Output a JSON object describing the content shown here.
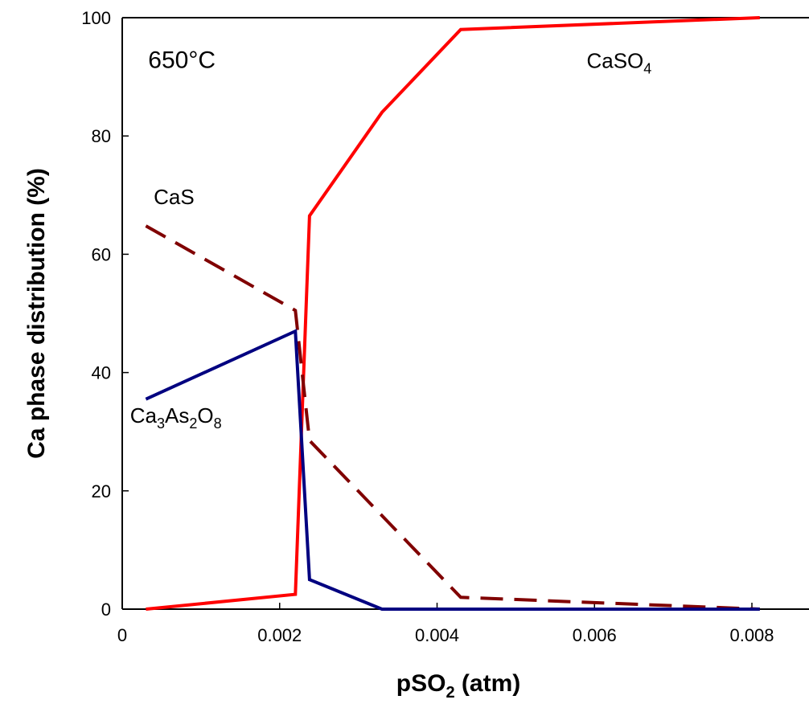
{
  "chart_data": {
    "type": "line",
    "title": "",
    "xlabel": {
      "main": "pSO",
      "sub": "2",
      "unit": " (atm)"
    },
    "ylabel": "Ca phase distribution (%)",
    "xlim": [
      0,
      0.009
    ],
    "ylim": [
      0,
      100
    ],
    "x_ticks": [
      0,
      0.002,
      0.004,
      0.006,
      0.008
    ],
    "x_tick_labels": [
      "0",
      "0.002",
      "0.004",
      "0.006",
      "0.008"
    ],
    "y_ticks": [
      0,
      20,
      40,
      60,
      80,
      100
    ],
    "y_tick_labels": [
      "0",
      "20",
      "40",
      "60",
      "80",
      "100"
    ],
    "grid": false,
    "legend": "none",
    "series": [
      {
        "color": "#ff0000",
        "style": "solid",
        "points": [
          [
            0.0003,
            0
          ],
          [
            0.0022,
            2.5
          ],
          [
            0.00238,
            66.5
          ],
          [
            0.0033,
            84
          ],
          [
            0.0043,
            98
          ],
          [
            0.0081,
            100
          ]
        ]
      },
      {
        "color": "#800000",
        "style": "dashed",
        "points": [
          [
            0.0003,
            64.8
          ],
          [
            0.0022,
            50.5
          ],
          [
            0.00238,
            28.5
          ],
          [
            0.0043,
            2
          ],
          [
            0.0081,
            0
          ]
        ]
      },
      {
        "color": "#000080",
        "style": "solid",
        "points": [
          [
            0.0003,
            35.5
          ],
          [
            0.0022,
            47
          ],
          [
            0.00238,
            5
          ],
          [
            0.0033,
            0
          ],
          [
            0.0081,
            0
          ]
        ]
      }
    ],
    "annotations": [
      {
        "name": "temperature",
        "x": 0.00033,
        "y": 91.5,
        "parts": [
          {
            "t": "650°C"
          }
        ],
        "size": "big"
      },
      {
        "name": "caso4",
        "x": 0.0059,
        "y": 91.5,
        "parts": [
          {
            "t": "CaSO"
          },
          {
            "t": "4",
            "sub": true
          }
        ]
      },
      {
        "name": "cas",
        "x": 0.0004,
        "y": 68.5,
        "parts": [
          {
            "t": "CaS"
          }
        ]
      },
      {
        "name": "ca3as2o8",
        "x": 0.0001,
        "y": 31.5,
        "parts": [
          {
            "t": "Ca"
          },
          {
            "t": "3",
            "sub": true
          },
          {
            "t": "As"
          },
          {
            "t": "2",
            "sub": true
          },
          {
            "t": "O"
          },
          {
            "t": "8",
            "sub": true
          }
        ]
      }
    ]
  }
}
